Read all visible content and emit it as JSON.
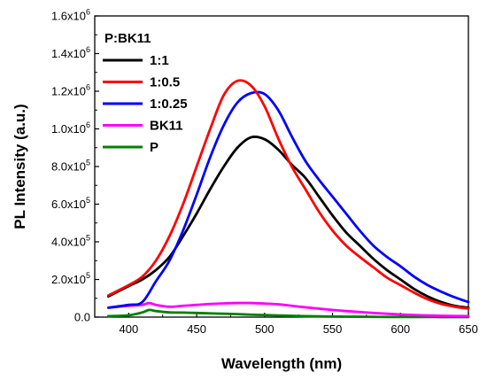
{
  "chart_data": {
    "type": "line",
    "xlabel": "Wavelength (nm)",
    "ylabel": "PL Intensity (a.u.)",
    "xlim": [
      375,
      650
    ],
    "ylim": [
      0,
      1600000
    ],
    "x_ticks": [
      {
        "value": 400,
        "label": "400"
      },
      {
        "value": 450,
        "label": "450"
      },
      {
        "value": 500,
        "label": "500"
      },
      {
        "value": 550,
        "label": "550"
      },
      {
        "value": 600,
        "label": "600"
      },
      {
        "value": 650,
        "label": "650"
      }
    ],
    "y_ticks": [
      {
        "value": 0,
        "mant": "0.0",
        "exp": ""
      },
      {
        "value": 200000,
        "mant": "2.0x10",
        "exp": "5"
      },
      {
        "value": 400000,
        "mant": "4.0x10",
        "exp": "5"
      },
      {
        "value": 600000,
        "mant": "6.0x10",
        "exp": "5"
      },
      {
        "value": 800000,
        "mant": "8.0x10",
        "exp": "5"
      },
      {
        "value": 1000000,
        "mant": "1.0x10",
        "exp": "6"
      },
      {
        "value": 1200000,
        "mant": "1.2x10",
        "exp": "6"
      },
      {
        "value": 1400000,
        "mant": "1.4x10",
        "exp": "6"
      },
      {
        "value": 1600000,
        "mant": "1.6x10",
        "exp": "6"
      }
    ],
    "legend_title": "P:BK11",
    "legend_position": "top-left",
    "grid": false,
    "series": [
      {
        "name": "1:1",
        "color": "#000000",
        "points": [
          [
            385,
            110000
          ],
          [
            400,
            165000
          ],
          [
            410,
            200000
          ],
          [
            420,
            250000
          ],
          [
            430,
            320000
          ],
          [
            440,
            430000
          ],
          [
            450,
            550000
          ],
          [
            460,
            680000
          ],
          [
            470,
            800000
          ],
          [
            480,
            900000
          ],
          [
            490,
            955000
          ],
          [
            500,
            945000
          ],
          [
            510,
            890000
          ],
          [
            520,
            810000
          ],
          [
            530,
            740000
          ],
          [
            540,
            640000
          ],
          [
            550,
            540000
          ],
          [
            560,
            450000
          ],
          [
            570,
            380000
          ],
          [
            580,
            310000
          ],
          [
            590,
            250000
          ],
          [
            600,
            200000
          ],
          [
            610,
            150000
          ],
          [
            620,
            110000
          ],
          [
            630,
            80000
          ],
          [
            640,
            60000
          ],
          [
            650,
            50000
          ]
        ]
      },
      {
        "name": "1:0.5",
        "color": "#ff0000",
        "points": [
          [
            385,
            115000
          ],
          [
            400,
            170000
          ],
          [
            410,
            215000
          ],
          [
            420,
            300000
          ],
          [
            430,
            430000
          ],
          [
            440,
            600000
          ],
          [
            450,
            800000
          ],
          [
            460,
            1000000
          ],
          [
            470,
            1180000
          ],
          [
            480,
            1255000
          ],
          [
            490,
            1230000
          ],
          [
            500,
            1120000
          ],
          [
            510,
            950000
          ],
          [
            520,
            800000
          ],
          [
            530,
            680000
          ],
          [
            540,
            560000
          ],
          [
            550,
            460000
          ],
          [
            560,
            380000
          ],
          [
            570,
            320000
          ],
          [
            580,
            265000
          ],
          [
            590,
            210000
          ],
          [
            600,
            170000
          ],
          [
            610,
            130000
          ],
          [
            620,
            95000
          ],
          [
            630,
            70000
          ],
          [
            640,
            55000
          ],
          [
            650,
            45000
          ]
        ]
      },
      {
        "name": "1:0.25",
        "color": "#0000ff",
        "points": [
          [
            385,
            50000
          ],
          [
            400,
            65000
          ],
          [
            410,
            80000
          ],
          [
            420,
            190000
          ],
          [
            430,
            300000
          ],
          [
            440,
            460000
          ],
          [
            450,
            650000
          ],
          [
            460,
            850000
          ],
          [
            470,
            1020000
          ],
          [
            480,
            1140000
          ],
          [
            490,
            1190000
          ],
          [
            500,
            1185000
          ],
          [
            510,
            1100000
          ],
          [
            520,
            960000
          ],
          [
            530,
            830000
          ],
          [
            540,
            730000
          ],
          [
            550,
            640000
          ],
          [
            560,
            550000
          ],
          [
            570,
            460000
          ],
          [
            580,
            380000
          ],
          [
            590,
            320000
          ],
          [
            600,
            270000
          ],
          [
            610,
            215000
          ],
          [
            620,
            170000
          ],
          [
            630,
            135000
          ],
          [
            640,
            105000
          ],
          [
            650,
            80000
          ]
        ]
      },
      {
        "name": "BK11",
        "color": "#ff00ff",
        "points": [
          [
            385,
            50000
          ],
          [
            400,
            60000
          ],
          [
            410,
            65000
          ],
          [
            415,
            75000
          ],
          [
            420,
            65000
          ],
          [
            430,
            55000
          ],
          [
            440,
            60000
          ],
          [
            450,
            65000
          ],
          [
            460,
            70000
          ],
          [
            470,
            73000
          ],
          [
            480,
            75000
          ],
          [
            490,
            75000
          ],
          [
            500,
            72000
          ],
          [
            510,
            68000
          ],
          [
            520,
            60000
          ],
          [
            530,
            52000
          ],
          [
            540,
            45000
          ],
          [
            550,
            38000
          ],
          [
            560,
            32000
          ],
          [
            570,
            27000
          ],
          [
            580,
            22000
          ],
          [
            590,
            18000
          ],
          [
            600,
            14000
          ],
          [
            610,
            11000
          ],
          [
            620,
            9000
          ],
          [
            630,
            7000
          ],
          [
            640,
            6000
          ],
          [
            650,
            5000
          ]
        ]
      },
      {
        "name": "P",
        "color": "#008000",
        "points": [
          [
            385,
            5000
          ],
          [
            400,
            10000
          ],
          [
            410,
            25000
          ],
          [
            415,
            38000
          ],
          [
            420,
            32000
          ],
          [
            430,
            25000
          ],
          [
            440,
            24000
          ],
          [
            450,
            22000
          ],
          [
            460,
            20000
          ],
          [
            470,
            18000
          ],
          [
            480,
            16000
          ],
          [
            490,
            13000
          ],
          [
            500,
            11000
          ],
          [
            510,
            9000
          ],
          [
            520,
            7000
          ],
          [
            530,
            5000
          ],
          [
            540,
            4000
          ],
          [
            550,
            3000
          ],
          [
            560,
            2500
          ],
          [
            570,
            2000
          ],
          [
            580,
            1500
          ],
          [
            590,
            1000
          ],
          [
            600,
            800
          ],
          [
            610,
            600
          ],
          [
            620,
            500
          ],
          [
            630,
            400
          ],
          [
            640,
            300
          ],
          [
            650,
            200
          ]
        ]
      }
    ]
  }
}
